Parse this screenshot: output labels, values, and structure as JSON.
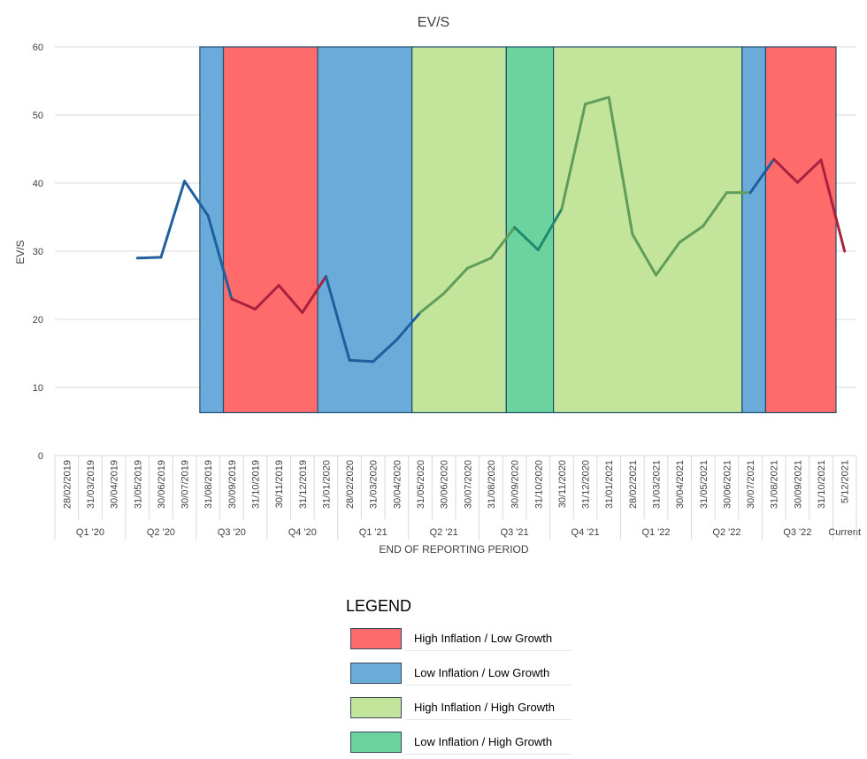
{
  "chart_data": {
    "type": "line",
    "title": "EV/S",
    "xlabel": "END OF REPORTING PERIOD",
    "ylabel": "EV/S",
    "ylim": [
      0,
      60
    ],
    "yticks": [
      0,
      10,
      20,
      30,
      40,
      50,
      60
    ],
    "grid": true,
    "categories": [
      "28/02/2019",
      "31/03/2019",
      "30/04/2019",
      "31/05/2019",
      "30/06/2019",
      "30/07/2019",
      "31/08/2019",
      "30/09/2019",
      "31/10/2019",
      "30/11/2019",
      "31/12/2019",
      "31/01/2020",
      "28/02/2020",
      "31/03/2020",
      "30/04/2020",
      "31/05/2020",
      "30/06/2020",
      "30/07/2020",
      "31/08/2020",
      "30/09/2020",
      "31/10/2020",
      "30/11/2020",
      "31/12/2020",
      "31/01/2021",
      "28/02/2021",
      "31/03/2021",
      "30/04/2021",
      "31/05/2021",
      "30/06/2021",
      "30/07/2021",
      "31/08/2021",
      "30/09/2021",
      "31/10/2021",
      "5/12/2021"
    ],
    "quarters": [
      {
        "label": "Q1 '20",
        "start": 0,
        "end": 2
      },
      {
        "label": "Q2 '20",
        "start": 3,
        "end": 5
      },
      {
        "label": "Q3 '20",
        "start": 6,
        "end": 8
      },
      {
        "label": "Q4 '20",
        "start": 9,
        "end": 11
      },
      {
        "label": "Q1 '21",
        "start": 12,
        "end": 14
      },
      {
        "label": "Q2 '21",
        "start": 15,
        "end": 17
      },
      {
        "label": "Q3 '21",
        "start": 18,
        "end": 20
      },
      {
        "label": "Q4 '21",
        "start": 21,
        "end": 23
      },
      {
        "label": "Q1 '22",
        "start": 24,
        "end": 26
      },
      {
        "label": "Q2 '22",
        "start": 27,
        "end": 29
      },
      {
        "label": "Q3 '22",
        "start": 30,
        "end": 32
      },
      {
        "label": "Current",
        "start": 33,
        "end": 33
      }
    ],
    "series": [
      {
        "values": [
          null,
          null,
          null,
          29.0,
          29.1,
          40.3,
          35.2,
          23.0,
          21.5,
          25.0,
          21.0,
          26.3,
          14.0,
          13.8,
          17.0,
          21.0,
          23.8,
          27.5,
          29.0,
          33.5,
          30.2,
          36.2,
          51.6,
          52.6,
          32.5,
          26.5,
          31.3,
          33.7,
          38.6,
          38.6,
          43.5,
          40.1,
          43.4,
          30.0
        ]
      }
    ],
    "regimes": [
      {
        "type": "low_low",
        "start": 6,
        "end": 7
      },
      {
        "type": "high_low",
        "start": 7,
        "end": 11
      },
      {
        "type": "low_low",
        "start": 11,
        "end": 15
      },
      {
        "type": "high_high",
        "start": 15,
        "end": 19
      },
      {
        "type": "low_high",
        "start": 19,
        "end": 21
      },
      {
        "type": "high_high",
        "start": 21,
        "end": 29
      },
      {
        "type": "low_low",
        "start": 29,
        "end": 30
      },
      {
        "type": "high_low",
        "start": 30,
        "end": 35
      }
    ],
    "regime_y_range": [
      6.3,
      60
    ],
    "line_colors": {
      "low_low": "#1f5f9e",
      "high_low": "#a8213e",
      "high_high": "#5f9e5a",
      "low_high": "#1f8a70"
    }
  },
  "legend": {
    "title": "LEGEND",
    "items": [
      {
        "key": "high_low",
        "label": "High Inflation / Low Growth",
        "color": "#ff6b6b"
      },
      {
        "key": "low_low",
        "label": "Low Inflation / Low Growth",
        "color": "#6aabd9"
      },
      {
        "key": "high_high",
        "label": "High Inflation / High Growth",
        "color": "#c3e49b"
      },
      {
        "key": "low_high",
        "label": "Low Inflation / High Growth",
        "color": "#6cd39f"
      }
    ]
  }
}
